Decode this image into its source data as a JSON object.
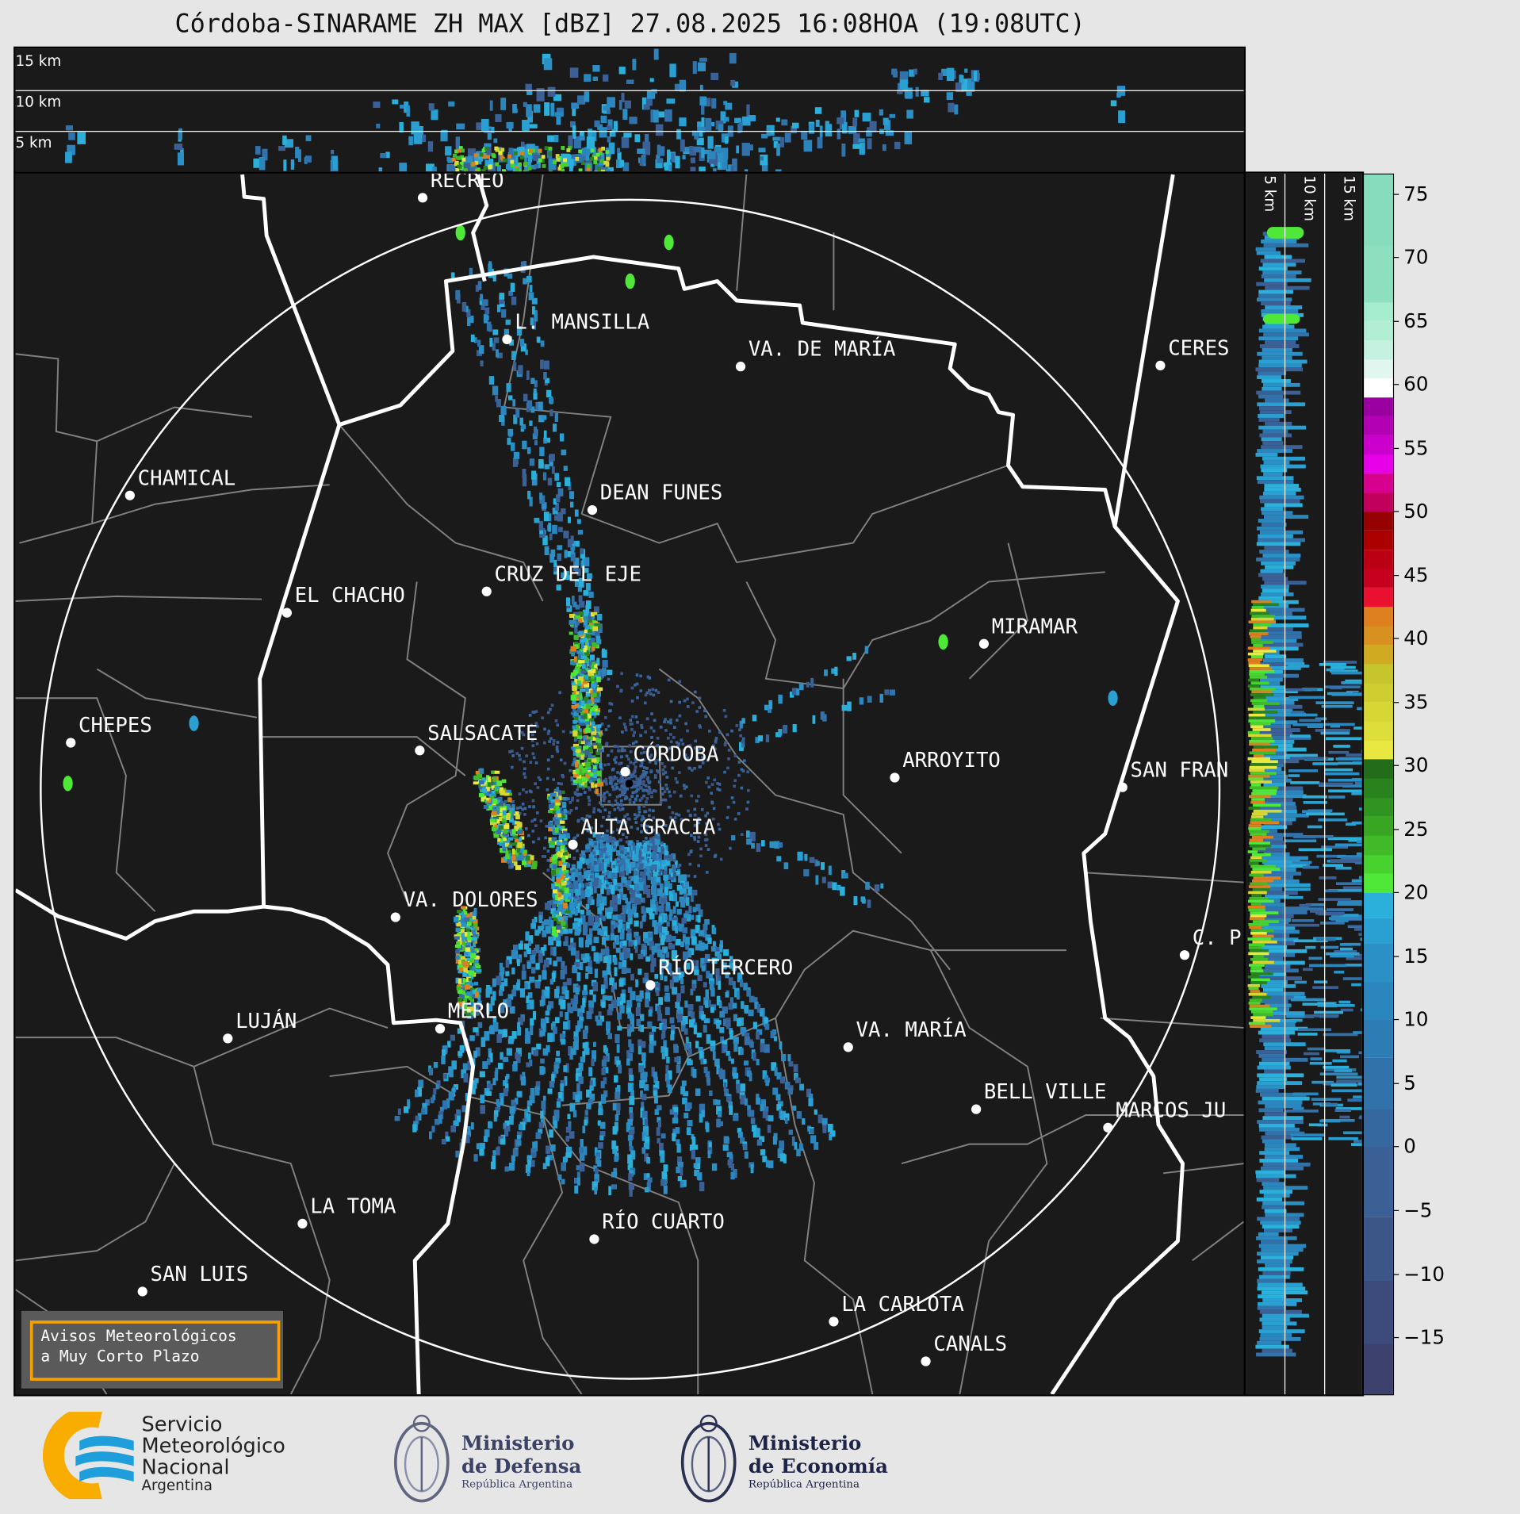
{
  "title": "Córdoba-SINARAME ZH MAX [dBZ] 27.08.2025 16:08HOA (19:08UTC)",
  "top_panel": {
    "labels": [
      "15 km",
      "10 km",
      "5 km"
    ]
  },
  "right_panel": {
    "labels": [
      "5 km",
      "10 km",
      "15 km"
    ]
  },
  "cities": [
    {
      "name": "RECREO"
    },
    {
      "name": "L. MANSILLA"
    },
    {
      "name": "VA. DE MARÍA"
    },
    {
      "name": "CERES"
    },
    {
      "name": "CHAMICAL"
    },
    {
      "name": "DEAN FUNES"
    },
    {
      "name": "CRUZ DEL EJE"
    },
    {
      "name": "EL CHACHO"
    },
    {
      "name": "MIRAMAR"
    },
    {
      "name": "CHEPES"
    },
    {
      "name": "SALSACATE"
    },
    {
      "name": "CÓRDOBA"
    },
    {
      "name": "ARROYITO"
    },
    {
      "name": "SAN FRAN"
    },
    {
      "name": "ALTA GRACIA"
    },
    {
      "name": "VA. DOLORES"
    },
    {
      "name": "C. P"
    },
    {
      "name": "RÍO TERCERO"
    },
    {
      "name": "MERLO"
    },
    {
      "name": "LUJÁN"
    },
    {
      "name": "VA. MARÍA"
    },
    {
      "name": "BELL VILLE"
    },
    {
      "name": "MARCOS JU"
    },
    {
      "name": "LA TOMA"
    },
    {
      "name": "RÍO CUARTO"
    },
    {
      "name": "SAN LUIS"
    },
    {
      "name": "LA CARLOTA"
    },
    {
      "name": "CANALS"
    }
  ],
  "colorbar": {
    "unit": "dBZ",
    "range": [
      -19.5,
      76.5
    ],
    "ticks": [
      "75",
      "70",
      "65",
      "60",
      "55",
      "50",
      "45",
      "40",
      "35",
      "30",
      "25",
      "20",
      "15",
      "10",
      "5",
      "0",
      "−5",
      "−10",
      "−15"
    ],
    "tick_values": [
      75,
      70,
      65,
      60,
      55,
      50,
      45,
      40,
      35,
      30,
      25,
      20,
      15,
      10,
      5,
      0,
      -5,
      -10,
      -15
    ],
    "bins": [
      {
        "from": -19.5,
        "to": -15.5,
        "color": "#3d416e"
      },
      {
        "from": -15.5,
        "to": -10.5,
        "color": "#3d4a7c"
      },
      {
        "from": -10.5,
        "to": -5.5,
        "color": "#3c5688"
      },
      {
        "from": -5.5,
        "to": 0,
        "color": "#3a6096"
      },
      {
        "from": 0,
        "to": 3,
        "color": "#3668a0"
      },
      {
        "from": 3,
        "to": 7,
        "color": "#3272aa"
      },
      {
        "from": 7,
        "to": 10,
        "color": "#2e7cb4"
      },
      {
        "from": 10,
        "to": 13,
        "color": "#2c86be"
      },
      {
        "from": 13,
        "to": 16,
        "color": "#2a90c6"
      },
      {
        "from": 16,
        "to": 18,
        "color": "#2aa0d2"
      },
      {
        "from": 18,
        "to": 20,
        "color": "#2ab0da"
      },
      {
        "from": 20,
        "to": 21.5,
        "color": "#50e838"
      },
      {
        "from": 21.5,
        "to": 23,
        "color": "#48d230"
      },
      {
        "from": 23,
        "to": 24.5,
        "color": "#40ba28"
      },
      {
        "from": 24.5,
        "to": 26,
        "color": "#38a622"
      },
      {
        "from": 26,
        "to": 27.5,
        "color": "#309420"
      },
      {
        "from": 27.5,
        "to": 29,
        "color": "#2a821e"
      },
      {
        "from": 29,
        "to": 30.5,
        "color": "#226c1a"
      },
      {
        "from": 30.5,
        "to": 32,
        "color": "#e8e840"
      },
      {
        "from": 32,
        "to": 33.5,
        "color": "#dede3a"
      },
      {
        "from": 33.5,
        "to": 35,
        "color": "#d6d634"
      },
      {
        "from": 35,
        "to": 36.5,
        "color": "#cece30"
      },
      {
        "from": 36.5,
        "to": 38,
        "color": "#c6c62c"
      },
      {
        "from": 38,
        "to": 39.5,
        "color": "#d0aa20"
      },
      {
        "from": 39.5,
        "to": 41,
        "color": "#d89020"
      },
      {
        "from": 41,
        "to": 42.5,
        "color": "#de8020"
      },
      {
        "from": 42.5,
        "to": 44,
        "color": "#ea1030"
      },
      {
        "from": 44,
        "to": 45.5,
        "color": "#c80020"
      },
      {
        "from": 45.5,
        "to": 47,
        "color": "#bc0014"
      },
      {
        "from": 47,
        "to": 48.5,
        "color": "#aa0000"
      },
      {
        "from": 48.5,
        "to": 50,
        "color": "#960000"
      },
      {
        "from": 50,
        "to": 51.5,
        "color": "#c0005a"
      },
      {
        "from": 51.5,
        "to": 53,
        "color": "#d8008e"
      },
      {
        "from": 53,
        "to": 54.5,
        "color": "#e800e8"
      },
      {
        "from": 54.5,
        "to": 56,
        "color": "#cc00cc"
      },
      {
        "from": 56,
        "to": 57.5,
        "color": "#b400b4"
      },
      {
        "from": 57.5,
        "to": 59,
        "color": "#9a009f"
      },
      {
        "from": 59,
        "to": 60.5,
        "color": "#ffffff"
      },
      {
        "from": 60.5,
        "to": 62,
        "color": "#e0f6ee"
      },
      {
        "from": 62,
        "to": 63.5,
        "color": "#c5f2e0"
      },
      {
        "from": 63.5,
        "to": 65,
        "color": "#b2eed4"
      },
      {
        "from": 65,
        "to": 66.5,
        "color": "#a6ecce"
      },
      {
        "from": 66.5,
        "to": 71,
        "color": "#8ddfc0"
      },
      {
        "from": 71,
        "to": 76.5,
        "color": "#86dcbc"
      }
    ]
  },
  "warning_box": {
    "line1": "Avisos Meteorológicos",
    "line2": "a Muy Corto Plazo",
    "border_color": "#f5a200"
  },
  "footer": {
    "smn": {
      "line1": "Servicio",
      "line2": "Meteorológico",
      "line3": "Nacional",
      "line4": "Argentina"
    },
    "defensa": {
      "line1": "Ministerio",
      "line2": "de Defensa",
      "line3": "República Argentina"
    },
    "economia": {
      "line1": "Ministerio",
      "line2": "de Economía",
      "line3": "República Argentina"
    }
  },
  "colors": {
    "background": "#e6e6e6",
    "map_background": "#1a1a1a",
    "province_border": "#ffffff",
    "department_border": "#808080",
    "range_ring": "#ffffff"
  }
}
